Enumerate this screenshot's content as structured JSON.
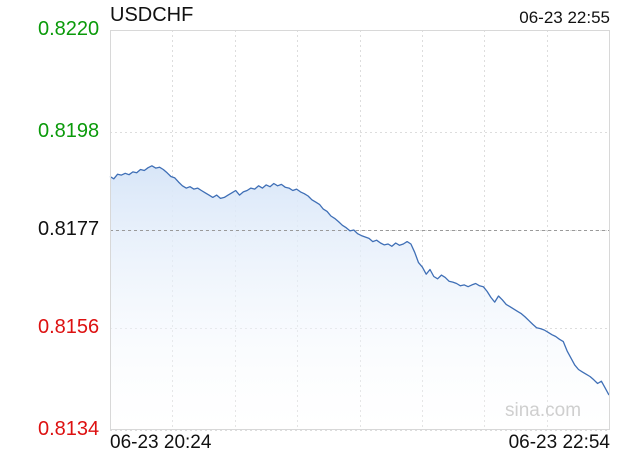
{
  "header": {
    "symbol": "USDCHF",
    "timestamp": "06-23 22:55"
  },
  "watermark": "sina.com",
  "colors": {
    "up": "#0a9a0a",
    "down": "#dd1111",
    "neutral": "#111111",
    "line": "#3f6fb6",
    "fill_top": "#d8e6f8",
    "grid": "#dddddd",
    "reference": "#9a9a9a"
  },
  "chart_data": {
    "type": "area",
    "title": "USDCHF",
    "ylim": [
      0.8134,
      0.822
    ],
    "y_ticks": [
      {
        "label": "0.8220",
        "value": 0.822,
        "class": "up"
      },
      {
        "label": "0.8198",
        "value": 0.8198,
        "class": "up"
      },
      {
        "label": "0.8177",
        "value": 0.8177,
        "class": "neutral"
      },
      {
        "label": "0.8156",
        "value": 0.8156,
        "class": "down"
      },
      {
        "label": "0.8134",
        "value": 0.8134,
        "class": "down"
      }
    ],
    "x_labels": [
      "06-23 20:24",
      "06-23 22:54"
    ],
    "reference_price": 0.8177,
    "grid": true,
    "series": [
      {
        "values": [
          0.81885,
          0.8188,
          0.8189,
          0.81888,
          0.81892,
          0.81889,
          0.81895,
          0.81893,
          0.819,
          0.81898,
          0.81904,
          0.81908,
          0.81903,
          0.81905,
          0.819,
          0.81893,
          0.81885,
          0.81882,
          0.81873,
          0.81865,
          0.8186,
          0.81863,
          0.81858,
          0.8186,
          0.81855,
          0.8185,
          0.81845,
          0.8184,
          0.81845,
          0.81838,
          0.8184,
          0.81845,
          0.8185,
          0.81855,
          0.81845,
          0.81852,
          0.81855,
          0.8186,
          0.81858,
          0.81865,
          0.8186,
          0.81867,
          0.81863,
          0.8187,
          0.81865,
          0.81868,
          0.81862,
          0.8186,
          0.81855,
          0.81858,
          0.81852,
          0.81848,
          0.81843,
          0.81835,
          0.8183,
          0.81825,
          0.81815,
          0.8181,
          0.818,
          0.81795,
          0.81788,
          0.8178,
          0.81775,
          0.81768,
          0.8177,
          0.81762,
          0.81758,
          0.81755,
          0.81752,
          0.81745,
          0.81748,
          0.81742,
          0.81738,
          0.8174,
          0.81735,
          0.81742,
          0.81737,
          0.8174,
          0.81745,
          0.8174,
          0.81722,
          0.817,
          0.8169,
          0.81675,
          0.81685,
          0.8167,
          0.81665,
          0.81673,
          0.81668,
          0.8166,
          0.81658,
          0.81655,
          0.8165,
          0.81652,
          0.81648,
          0.81652,
          0.81655,
          0.8165,
          0.81648,
          0.81638,
          0.81625,
          0.81615,
          0.81628,
          0.8162,
          0.8161,
          0.81605,
          0.816,
          0.81595,
          0.8159,
          0.81583,
          0.81575,
          0.81567,
          0.8156,
          0.81558,
          0.81555,
          0.8155,
          0.81545,
          0.81541,
          0.81535,
          0.8153,
          0.8151,
          0.81495,
          0.8148,
          0.8147,
          0.81465,
          0.8146,
          0.81455,
          0.81448,
          0.8144,
          0.81445,
          0.8143,
          0.81415
        ]
      }
    ]
  }
}
